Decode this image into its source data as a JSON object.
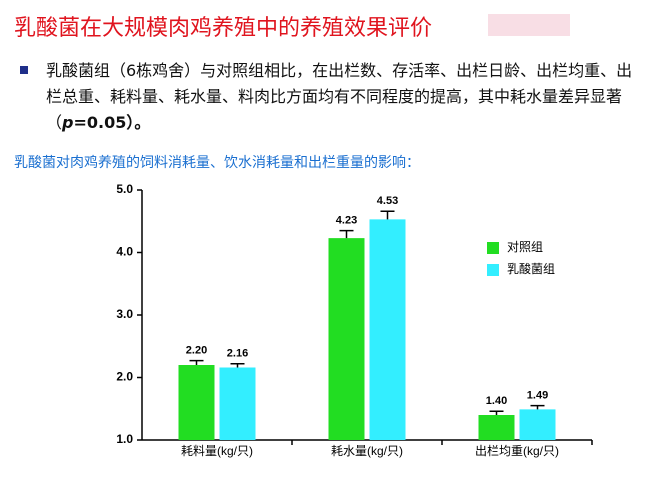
{
  "slide": {
    "title": "乳酸菌在大规模肉鸡养殖中的养殖效果评价",
    "bullet": {
      "before": "乳酸菌组（6栋鸡舍）与对照组相比，在出栏数、存活率、出栏日龄、出栏均重、出栏总重、耗料量、耗水量、料肉比方面均有不同程度的提高，其中耗水量差异显著（",
      "symbol": "p",
      "after": "=0.05）。"
    }
  },
  "chart_data": {
    "type": "bar",
    "subtitle": "乳酸菌对肉鸡养殖的饲料消耗量、饮水消耗量和出栏重量的影响：",
    "categories": [
      "耗料量(kg/只)",
      "耗水量(kg/只)",
      "出栏均重(kg/只)"
    ],
    "series": [
      {
        "name": "对照组",
        "color": "#22dd22",
        "values": [
          2.2,
          4.23,
          1.4
        ],
        "value_labels": [
          "2.20",
          "4.23",
          "1.40"
        ],
        "errors": [
          0.07,
          0.12,
          0.06
        ]
      },
      {
        "name": "乳酸菌组",
        "color": "#33eeff",
        "values": [
          2.16,
          4.53,
          1.49
        ],
        "value_labels": [
          "2.16",
          "4.53",
          "1.49"
        ],
        "errors": [
          0.06,
          0.13,
          0.06
        ]
      }
    ],
    "ylim": [
      1,
      5
    ],
    "yticks": [
      {
        "value": 1,
        "label": "1.0"
      },
      {
        "value": 2,
        "label": "2.0"
      },
      {
        "value": 3,
        "label": "3.0"
      },
      {
        "value": 4,
        "label": "4.0"
      },
      {
        "value": 5,
        "label": "5.0"
      }
    ],
    "legend": "right"
  }
}
